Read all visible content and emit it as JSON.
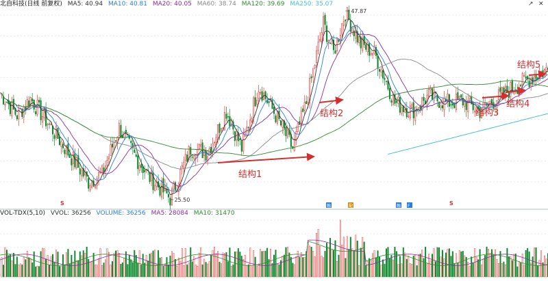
{
  "header": {
    "title": "北自科技(日线 前复权)",
    "ma": [
      {
        "label": "MA5: 40.94",
        "color": "#333333"
      },
      {
        "label": "MA10: 40.81",
        "color": "#2a7de1"
      },
      {
        "label": "MA20: 40.05",
        "color": "#8a2a9a"
      },
      {
        "label": "MA60: 38.74",
        "color": "#888888"
      },
      {
        "label": "MA120: 39.69",
        "color": "#2e8b2e"
      },
      {
        "label": "MA250: 35.07",
        "color": "#40c0d0"
      }
    ],
    "close_icon": "x-icon",
    "expand_icon": "expand-icon"
  },
  "volume_header": {
    "title": "VOL-TDX(5,10)",
    "items": [
      {
        "label": "VVOL: 36256",
        "color": "#333333"
      },
      {
        "label": "VOLUME: 36256",
        "color": "#2a7de1"
      },
      {
        "label": "MA5: 28084",
        "color": "#8a2a9a"
      },
      {
        "label": "MA10: 31470",
        "color": "#2e8b2e"
      }
    ]
  },
  "annotations": {
    "high_label": "47.87",
    "low_label": "25.50",
    "structures": [
      "结构1",
      "结构2",
      "结构3",
      "结构4",
      "结构5"
    ]
  },
  "markers": {
    "s_marks": [
      "S",
      "S"
    ],
    "event_icons": [
      "融",
      "配",
      "融",
      "F"
    ]
  },
  "colors": {
    "up": "#e53935",
    "down": "#0f8a2e",
    "arrow": "#d32f2f"
  },
  "chart_data": {
    "type": "candlestick",
    "price_high": 47.87,
    "price_low": 25.5,
    "ma_values": {
      "MA5": 40.94,
      "MA10": 40.81,
      "MA20": 40.05,
      "MA60": 38.74,
      "MA120": 39.69,
      "MA250": 35.07
    },
    "volume_values": {
      "VOLUME": 36256,
      "MA5": 28084,
      "MA10": 31470
    }
  }
}
